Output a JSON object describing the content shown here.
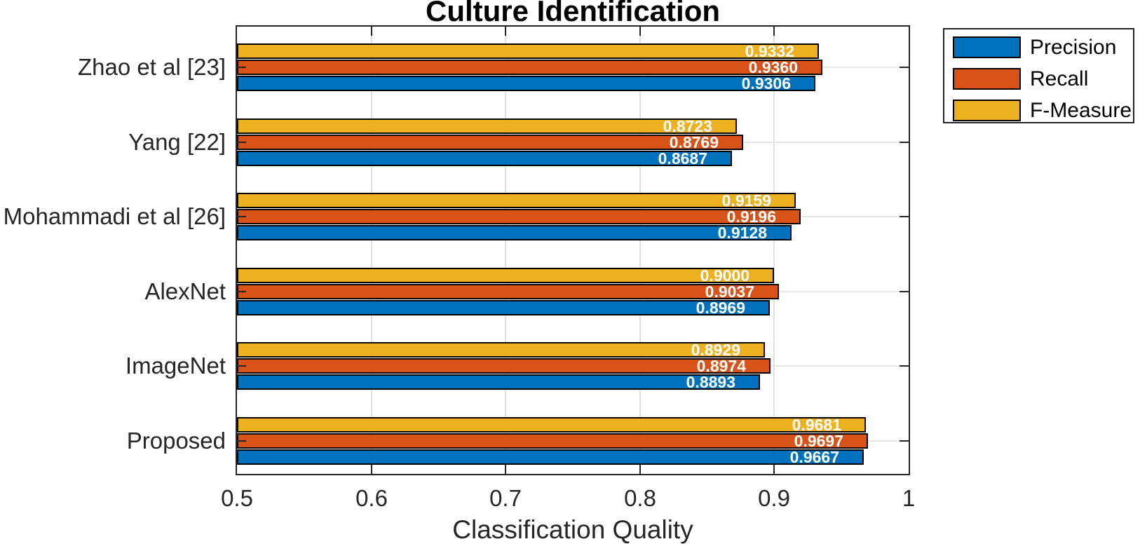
{
  "chart_data": {
    "type": "bar",
    "orientation": "horizontal-grouped",
    "title": "Culture Identification",
    "xlabel": "Classification Quality",
    "xlim": [
      0.5,
      1
    ],
    "xtick_values": [
      0.5,
      0.6,
      0.7,
      0.8,
      0.9,
      1
    ],
    "xtick_labels": [
      "0.5",
      "0.6",
      "0.7",
      "0.8",
      "0.9",
      "1"
    ],
    "grid": true,
    "categories": [
      "Zhao et al [23]",
      "Yang [22]",
      "Mohammadi et al [26]",
      "AlexNet",
      "ImageNet",
      "Proposed"
    ],
    "series": [
      {
        "name": "Precision",
        "color": "#0072BD",
        "values": [
          0.9306,
          0.8687,
          0.9128,
          0.8969,
          0.8893,
          0.9667
        ],
        "labels": [
          "0.9306",
          "0.8687",
          "0.9128",
          "0.8969",
          "0.8893",
          "0.9667"
        ]
      },
      {
        "name": "Recall",
        "color": "#D95319",
        "values": [
          0.936,
          0.8769,
          0.9196,
          0.9037,
          0.8974,
          0.9697
        ],
        "labels": [
          "0.9360",
          "0.8769",
          "0.9196",
          "0.9037",
          "0.8974",
          "0.9697"
        ]
      },
      {
        "name": "F-Measure",
        "color": "#EDB120",
        "values": [
          0.9332,
          0.8723,
          0.9159,
          0.9,
          0.8929,
          0.9681
        ],
        "labels": [
          "0.9332",
          "0.8723",
          "0.9159",
          "0.9000",
          "0.8929",
          "0.9681"
        ]
      }
    ],
    "bar_order_top_to_bottom_in_group": [
      "F-Measure",
      "Recall",
      "Precision"
    ],
    "value_label_color": "#FFFFFF",
    "legend": {
      "position": "upper-right-outside",
      "entries": [
        "Precision",
        "Recall",
        "F-Measure"
      ]
    },
    "colors": {
      "axis": "#262626",
      "grid": "#E0E0E0",
      "bar_edge": "#000000",
      "background": "#FFFFFF"
    }
  }
}
